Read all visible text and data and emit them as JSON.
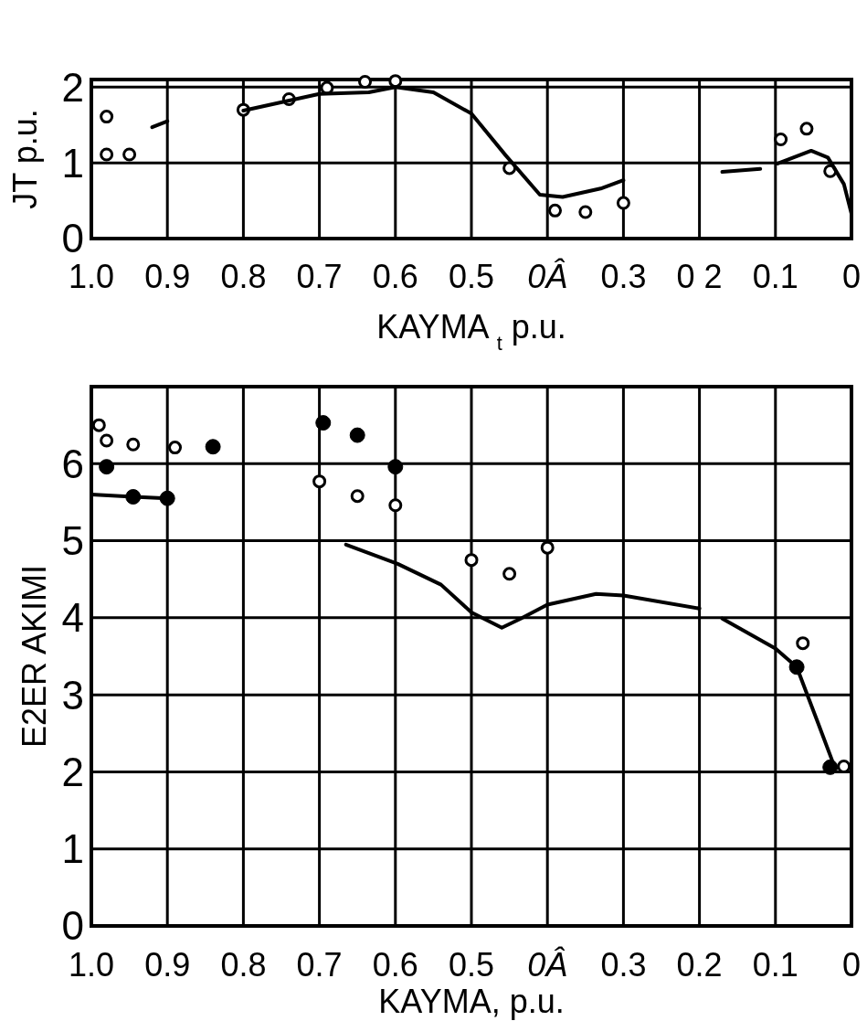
{
  "chart_data": [
    {
      "type": "scatter",
      "xlabel": "KAYMA $_{t}$ p.u.",
      "ylabel": "JT p.u.",
      "xlim": [
        1,
        0
      ],
      "ylim": [
        0,
        2.1
      ],
      "xticks": [
        {
          "value": 1,
          "label": "1.0"
        },
        {
          "value": 0.9,
          "label": "0.9"
        },
        {
          "value": 0.8,
          "label": "0.8"
        },
        {
          "value": 0.7,
          "label": "0.7"
        },
        {
          "value": 0.6,
          "label": "0.6"
        },
        {
          "value": 0.5,
          "label": "0.5"
        },
        {
          "value": 0.4,
          "label": "0Â"
        },
        {
          "value": 0.3,
          "label": "0.3"
        },
        {
          "value": 0.2,
          "label": "0 2"
        },
        {
          "value": 0.1,
          "label": "0.1"
        },
        {
          "value": 0,
          "label": "0"
        }
      ],
      "yticks": [
        0,
        1,
        2
      ],
      "grid": true,
      "series": [
        {
          "marker": "circle",
          "color": "#ffffff",
          "x": [
            0.98,
            0.98,
            0.95,
            0.8,
            0.74,
            0.69,
            0.64,
            0.6,
            0.45,
            0.39,
            0.35,
            0.3,
            0.093,
            0.059,
            0.028
          ],
          "values": [
            1.61,
            1.11,
            1.11,
            1.7,
            1.84,
            1.99,
            2.07,
            2.08,
            0.93,
            0.37,
            0.35,
            0.47,
            1.31,
            1.45,
            0.89
          ]
        },
        {
          "type": "line",
          "marker": "none",
          "color": "#000000",
          "x": [
            0.92,
            0.9,
            0.85,
            0.8,
            0.7,
            0.635,
            0.6,
            0.55,
            0.5,
            0.455,
            0.41,
            0.38,
            0.33,
            0.3,
            0.25,
            0.17,
            0.12,
            0.11,
            0.097,
            0.053,
            0.031,
            0.01,
            0.0
          ],
          "values": [
            1.47,
            1.55,
            null,
            1.69,
            1.91,
            1.93,
            2.0,
            1.93,
            1.65,
            1.1,
            0.58,
            0.55,
            0.66,
            0.77,
            null,
            0.88,
            0.92,
            null,
            0.99,
            1.16,
            1.07,
            0.72,
            0.33
          ]
        }
      ]
    },
    {
      "type": "scatter",
      "xlabel": "KAYMA, p.u.",
      "ylabel": "E2ER AKIMI",
      "xlim": [
        1,
        0
      ],
      "ylim": [
        0,
        7
      ],
      "xticks": [
        {
          "value": 1,
          "label": "1.0"
        },
        {
          "value": 0.9,
          "label": "0.9"
        },
        {
          "value": 0.8,
          "label": "0.8"
        },
        {
          "value": 0.7,
          "label": "0.7"
        },
        {
          "value": 0.6,
          "label": "0.6"
        },
        {
          "value": 0.5,
          "label": "0.5"
        },
        {
          "value": 0.4,
          "label": "0Â"
        },
        {
          "value": 0.3,
          "label": "0.3"
        },
        {
          "value": 0.2,
          "label": "0.2"
        },
        {
          "value": 0.1,
          "label": "0.1"
        },
        {
          "value": 0,
          "label": "0"
        }
      ],
      "yticks": [
        0,
        1,
        2,
        3,
        4,
        5,
        6
      ],
      "grid": true,
      "series": [
        {
          "marker": "circle",
          "color": "#ffffff",
          "x": [
            0.99,
            0.98,
            0.945,
            0.89,
            0.7,
            0.65,
            0.6,
            0.5,
            0.45,
            0.4,
            0.064,
            0.01
          ],
          "values": [
            6.5,
            6.3,
            6.25,
            6.21,
            5.77,
            5.58,
            5.46,
            4.75,
            4.57,
            4.91,
            3.67,
            2.07
          ]
        },
        {
          "marker": "circle",
          "color": "#000000",
          "x": [
            0.84,
            0.695,
            0.65,
            0.98,
            0.6,
            0.945,
            0.9,
            0.072,
            0.028
          ],
          "values": [
            6.22,
            6.53,
            6.37,
            5.96,
            5.96,
            5.57,
            5.55,
            3.36,
            2.06
          ]
        },
        {
          "type": "line",
          "marker": "none",
          "color": "#000000",
          "x": [
            1.0,
            0.945,
            0.9,
            0.85,
            0.665,
            0.597,
            0.54,
            0.5,
            0.46,
            0.435,
            0.4,
            0.336,
            0.3,
            0.2,
            0.185,
            0.17,
            0.1,
            0.072,
            0.045,
            0.024
          ],
          "values": [
            5.6,
            5.57,
            5.55,
            null,
            4.95,
            4.7,
            4.43,
            4.07,
            3.87,
            3.99,
            4.17,
            4.31,
            4.29,
            4.12,
            null,
            3.99,
            3.6,
            3.36,
            2.66,
            2.11
          ]
        }
      ]
    }
  ]
}
